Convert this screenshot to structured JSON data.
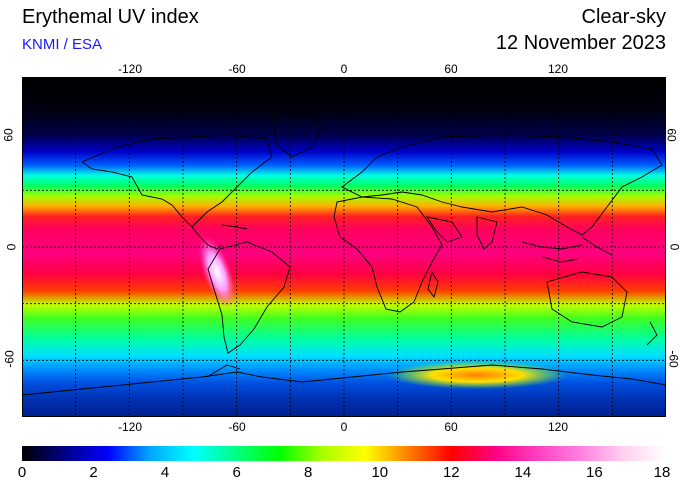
{
  "header": {
    "title": "Erythemal UV index",
    "organization": "KNMI / ESA",
    "condition": "Clear-sky",
    "date": "12 November 2023"
  },
  "map": {
    "projection": "equirectangular",
    "lon_range": [
      -180,
      180
    ],
    "lat_range": [
      -90,
      90
    ],
    "lon_ticks": [
      "-120",
      "-60",
      "0",
      "60",
      "120"
    ],
    "lat_ticks": [
      "60",
      "0",
      "-60"
    ],
    "gridlines": "dotted every 30 degrees"
  },
  "colorbar": {
    "min": 0,
    "max": 18,
    "tick_labels": [
      "0",
      "2",
      "4",
      "6",
      "8",
      "10",
      "12",
      "14",
      "16",
      "18"
    ],
    "colors": [
      "#000000",
      "#000088",
      "#0000ff",
      "#00aaff",
      "#00ffff",
      "#00ff80",
      "#00ff00",
      "#aaff00",
      "#ffff00",
      "#ff8000",
      "#ff0000",
      "#ff0080",
      "#ff40c0",
      "#ff80e0",
      "#ffd0f0",
      "#ffffff"
    ]
  }
}
